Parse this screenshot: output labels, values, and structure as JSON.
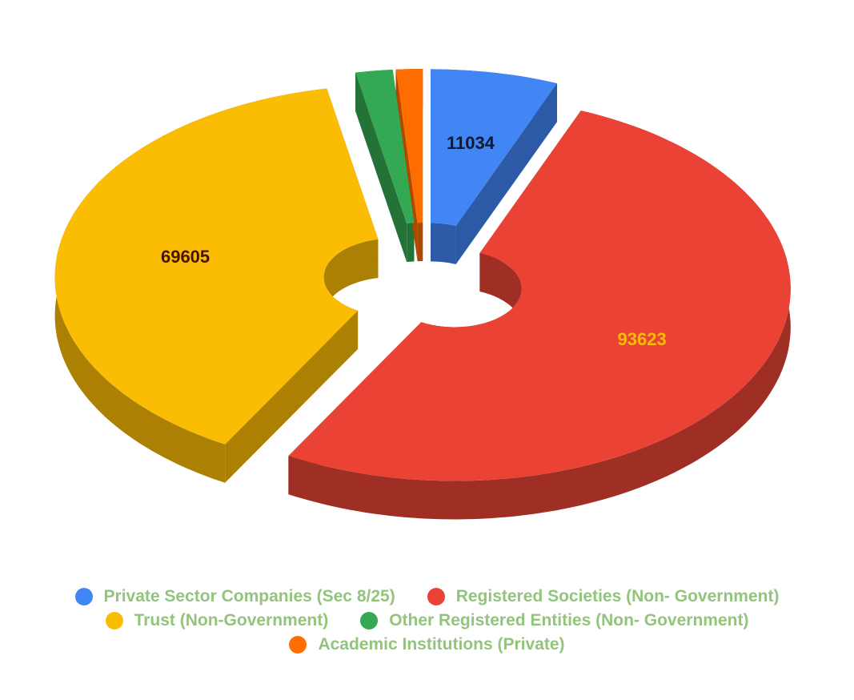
{
  "chart_data": {
    "type": "pie3d",
    "categories": [
      "Private Sector Companies (Sec 8/25)",
      "Registered Societies (Non- Government)",
      "Trust (Non-Government)",
      "Other Registered Entities (Non- Government)",
      "Academic Institutions (Private)"
    ],
    "values": [
      11034,
      93623,
      69605,
      3200,
      2300
    ],
    "colors": [
      "#4285f4",
      "#ea4335",
      "#fbbc04",
      "#34a853",
      "#ff6d01"
    ],
    "legend": "bottom"
  }
}
